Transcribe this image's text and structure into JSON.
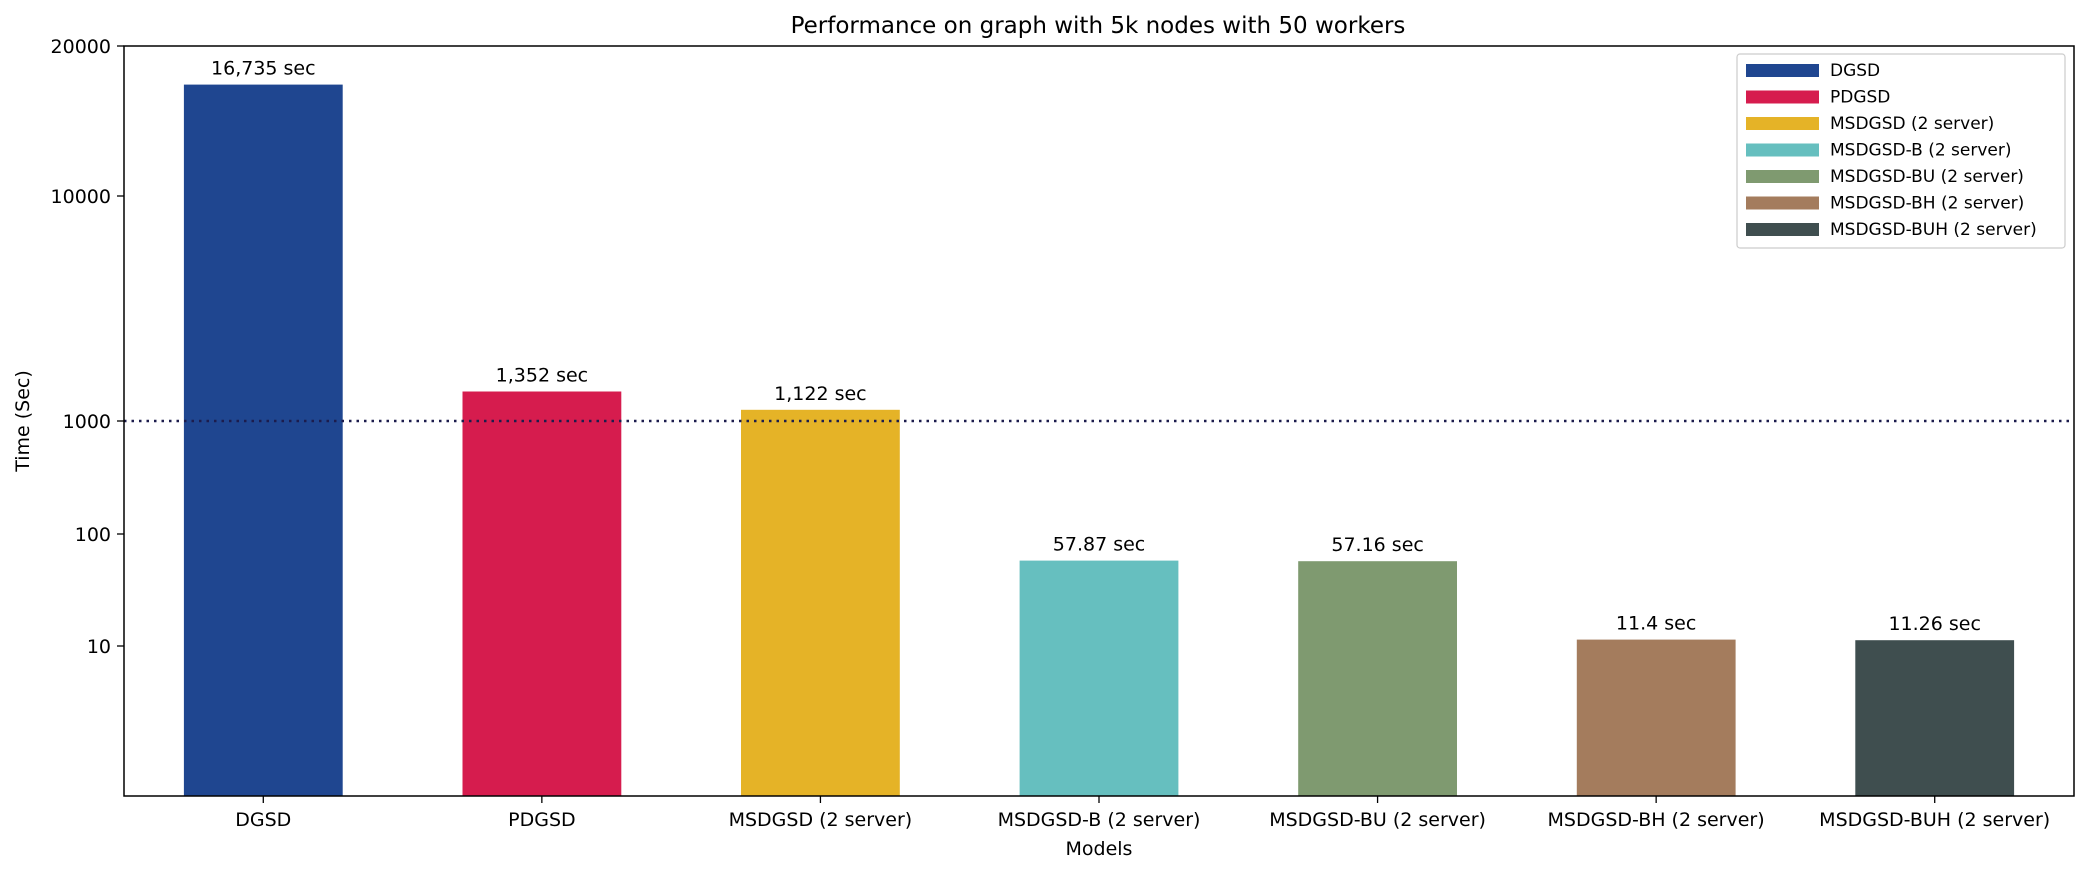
{
  "chart_data": {
    "type": "bar",
    "title": "Performance on graph with 5k nodes with 50 workers",
    "xlabel": "Models",
    "ylabel": "Time (Sec)",
    "categories": [
      "DGSD",
      "PDGSD",
      "MSDGSD (2 server)",
      "MSDGSD-B (2 server)",
      "MSDGSD-BU (2 server)",
      "MSDGSD-BH (2 server)",
      "MSDGSD-BUH (2 server)"
    ],
    "values": [
      16735,
      1352,
      1122,
      57.87,
      57.16,
      11.4,
      11.26
    ],
    "data_labels": [
      "16,735 sec",
      "1,352 sec",
      "1,122 sec",
      "57.87 sec",
      "57.16 sec",
      "11.4 sec",
      "11.26 sec"
    ],
    "colors": [
      "#1f4690",
      "#d61c4e",
      "#e5b327",
      "#66bfbf",
      "#7f9a70",
      "#a47c5d",
      "#3f4e4f"
    ],
    "y_ticks": [
      "10",
      "100",
      "1000",
      "10000",
      "20000"
    ],
    "reference_line": {
      "value": 1000,
      "style": "dotted",
      "color": "#1c1c4d"
    },
    "legend": {
      "placement": "top-right"
    },
    "grid": false
  }
}
